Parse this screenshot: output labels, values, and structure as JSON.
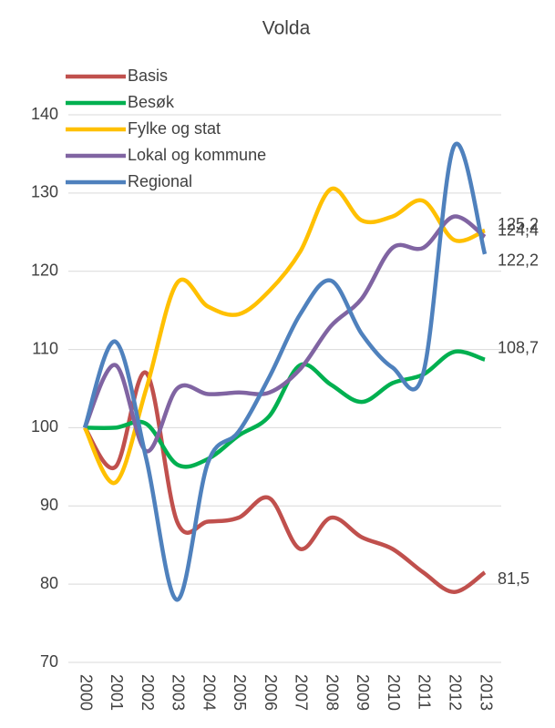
{
  "chart_data": {
    "type": "line",
    "title": "Volda",
    "categories": [
      "2000",
      "2001",
      "2002",
      "2003",
      "2004",
      "2005",
      "2006",
      "2007",
      "2008",
      "2009",
      "2010",
      "2011",
      "2012",
      "2013"
    ],
    "series": [
      {
        "name": "Basis",
        "color": "#c0504d",
        "values": [
          100,
          95,
          107,
          88,
          88,
          88.5,
          91,
          84.5,
          88.5,
          86,
          84.5,
          81.5,
          79,
          81.5
        ],
        "value_labels": [
          null,
          null,
          null,
          null,
          null,
          null,
          null,
          null,
          null,
          null,
          null,
          null,
          null,
          "81,5"
        ]
      },
      {
        "name": "Besøk",
        "color": "#00b050",
        "values": [
          100,
          100,
          100.5,
          95.3,
          96,
          99,
          101.5,
          108,
          105.5,
          103.3,
          105.7,
          106.8,
          109.7,
          108.7
        ],
        "value_labels": [
          null,
          null,
          null,
          null,
          null,
          null,
          null,
          null,
          null,
          null,
          null,
          null,
          null,
          "108,7"
        ]
      },
      {
        "name": "Fylke og stat",
        "color": "#ffc000",
        "values": [
          100,
          93,
          105,
          118.5,
          115.5,
          114.5,
          117.5,
          122.5,
          130.5,
          126.5,
          127,
          129,
          124,
          125.2
        ],
        "value_labels": [
          null,
          null,
          null,
          null,
          null,
          null,
          null,
          null,
          null,
          null,
          null,
          null,
          null,
          "125,2"
        ]
      },
      {
        "name": "Lokal og kommune",
        "color": "#8064a2",
        "values": [
          100,
          108,
          97,
          105,
          104.3,
          104.5,
          104.5,
          107.5,
          113,
          116.5,
          123,
          123,
          127,
          124.4
        ],
        "value_labels": [
          null,
          null,
          null,
          null,
          null,
          null,
          null,
          null,
          null,
          null,
          null,
          null,
          null,
          "124,4"
        ]
      },
      {
        "name": "Regional",
        "color": "#4f81bd",
        "values": [
          100,
          111,
          96,
          78,
          95.5,
          99.5,
          106.5,
          114.5,
          118.8,
          112,
          107.7,
          107,
          136,
          122.2
        ],
        "value_labels": [
          null,
          null,
          null,
          null,
          null,
          null,
          null,
          null,
          null,
          null,
          null,
          null,
          null,
          "122,2"
        ]
      }
    ],
    "ylim": [
      70,
      140
    ],
    "yticks": [
      70,
      80,
      90,
      100,
      110,
      120,
      130,
      140
    ],
    "grid": true,
    "legend": "top-left"
  }
}
